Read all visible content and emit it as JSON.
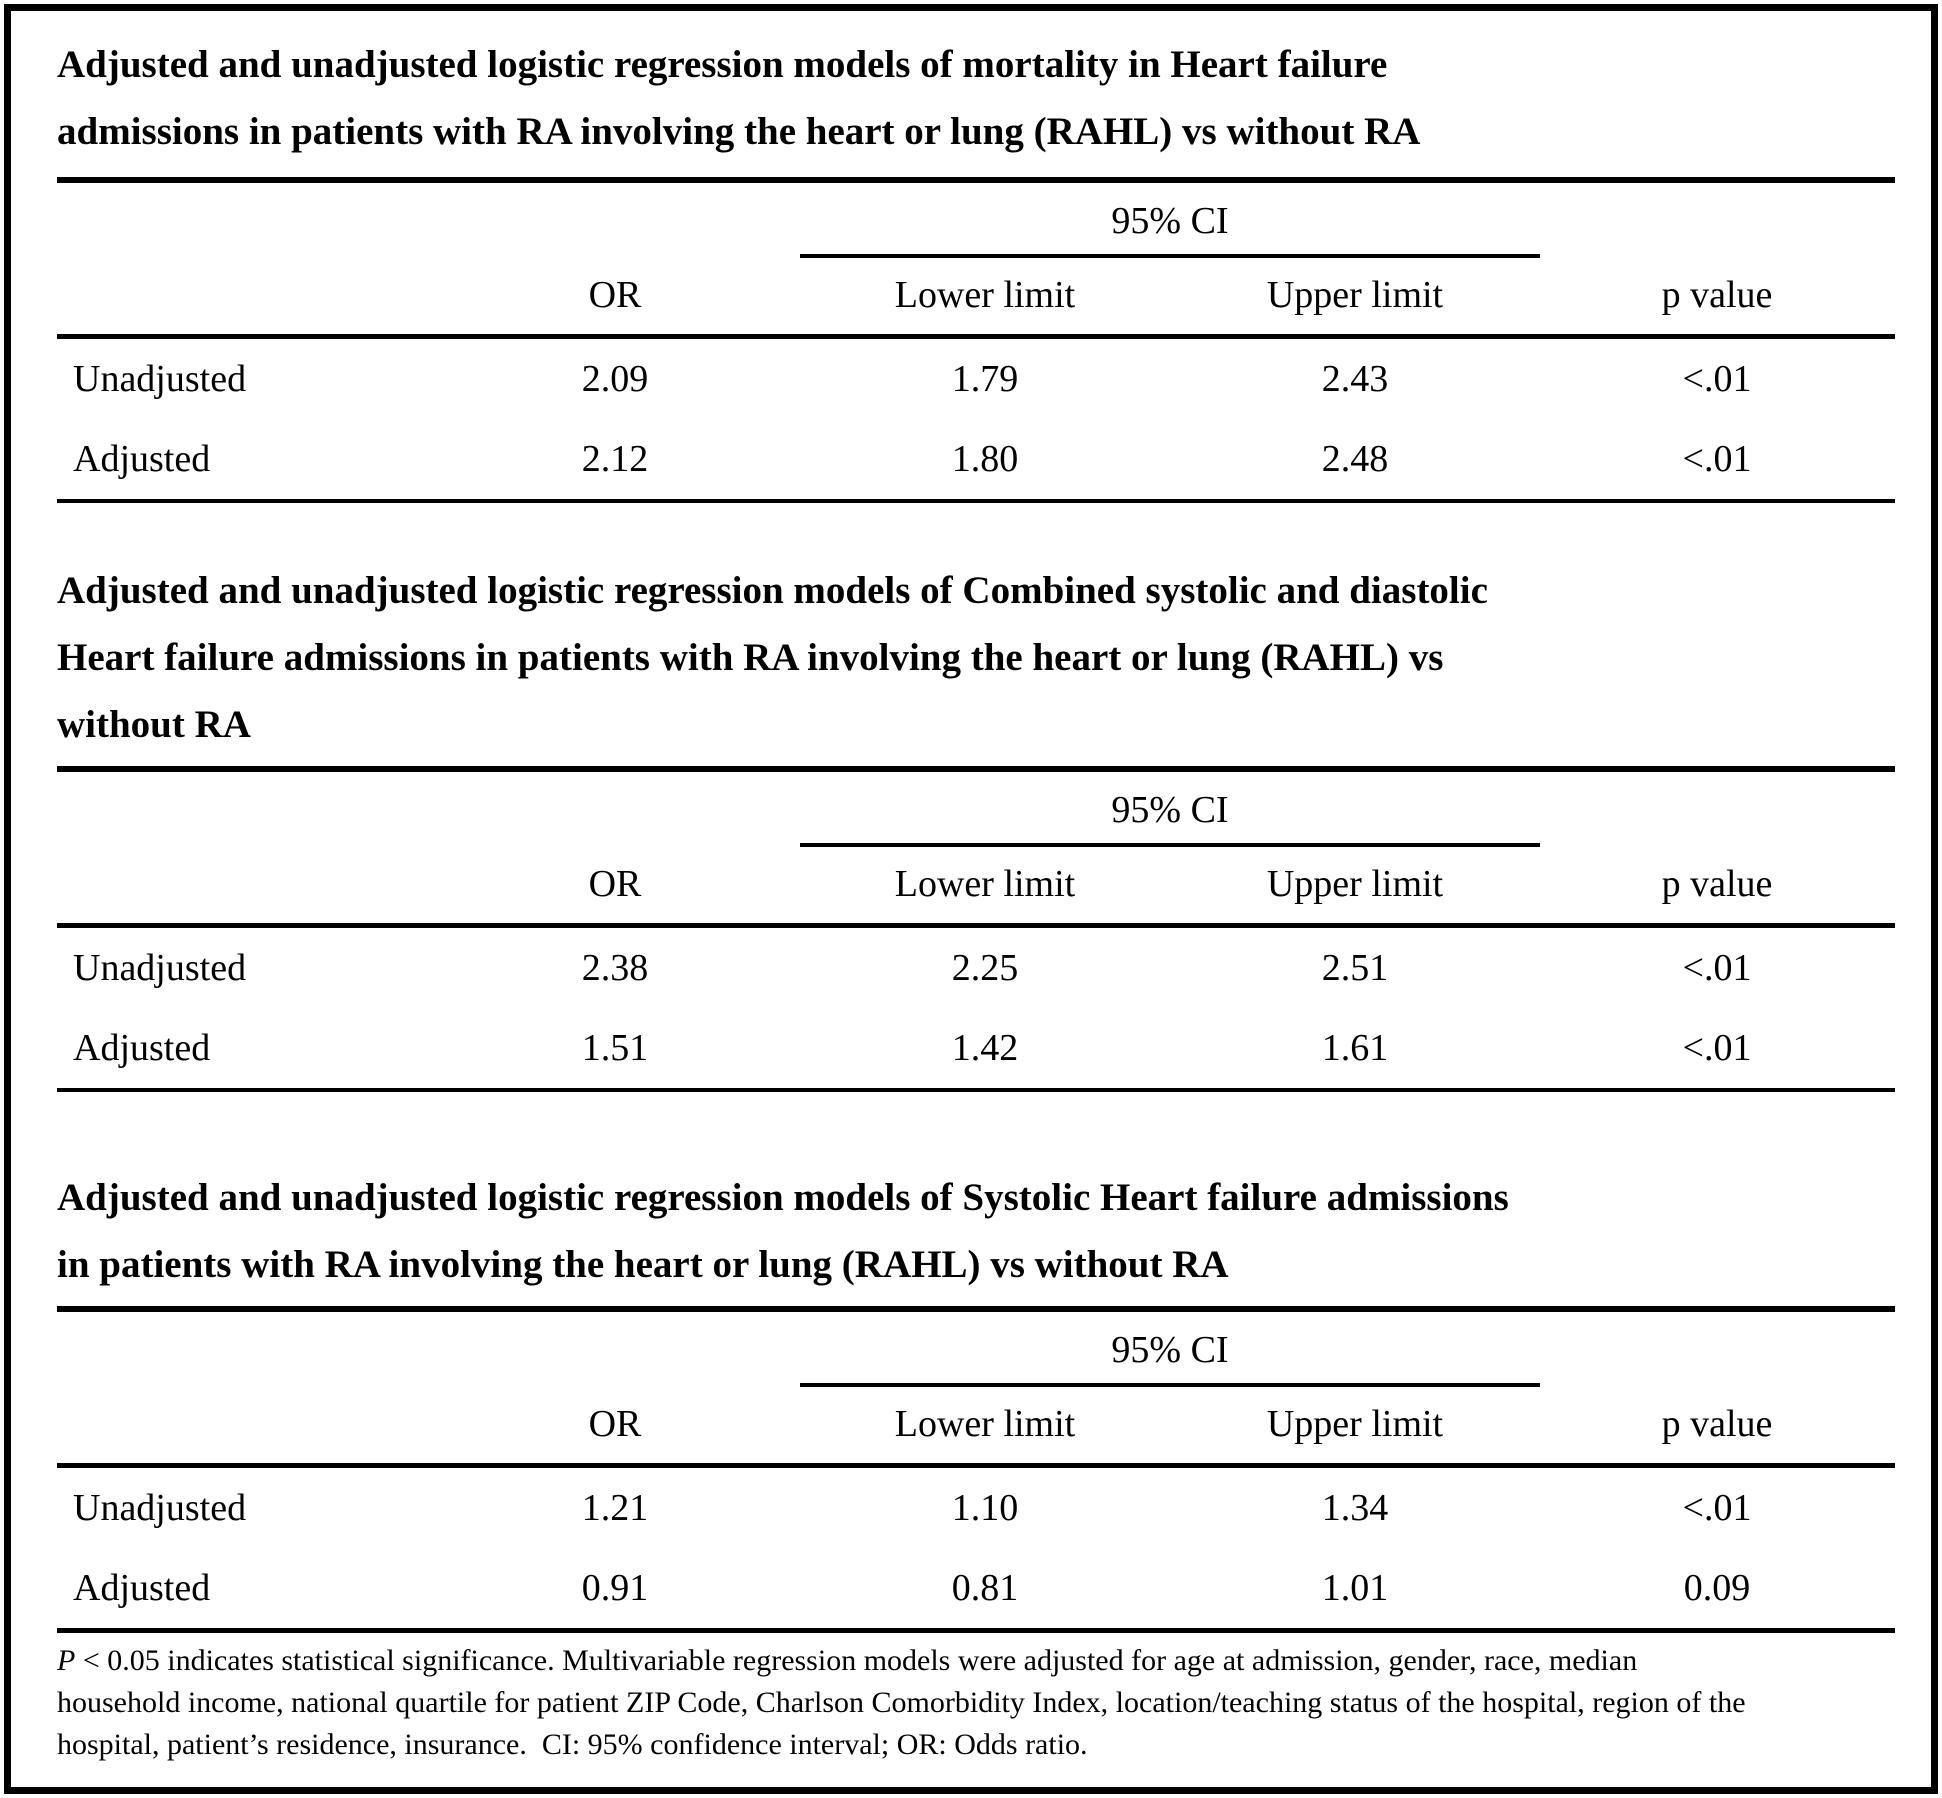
{
  "tables": [
    {
      "title_lines": [
        "Adjusted and unadjusted logistic regression models of mortality in Heart failure",
        "admissions in patients with RA involving the heart or lung (RAHL) vs without RA"
      ],
      "ci_group_header": "95% CI",
      "column_headers": {
        "or": "OR",
        "lower": "Lower limit",
        "upper": "Upper limit",
        "p": "p value"
      },
      "rows": [
        {
          "label": "Unadjusted",
          "or": "2.09",
          "lower": "1.79",
          "upper": "2.43",
          "p": "<.01"
        },
        {
          "label": "Adjusted",
          "or": "2.12",
          "lower": "1.80",
          "upper": "2.48",
          "p": "<.01"
        }
      ]
    },
    {
      "title_lines": [
        "Adjusted and unadjusted logistic regression models of Combined systolic and diastolic",
        "Heart failure admissions in patients with RA involving the heart or lung (RAHL) vs",
        "without RA"
      ],
      "ci_group_header": "95% CI",
      "column_headers": {
        "or": "OR",
        "lower": "Lower limit",
        "upper": "Upper limit",
        "p": "p value"
      },
      "rows": [
        {
          "label": "Unadjusted",
          "or": "2.38",
          "lower": "2.25",
          "upper": "2.51",
          "p": "<.01"
        },
        {
          "label": "Adjusted",
          "or": "1.51",
          "lower": "1.42",
          "upper": "1.61",
          "p": "<.01"
        }
      ]
    },
    {
      "title_lines": [
        "Adjusted and unadjusted logistic regression models of Systolic Heart failure admissions",
        "in patients with RA involving the heart or lung (RAHL) vs without RA"
      ],
      "ci_group_header": "95% CI",
      "column_headers": {
        "or": "OR",
        "lower": "Lower limit",
        "upper": "Upper limit",
        "p": "p value"
      },
      "rows": [
        {
          "label": "Unadjusted",
          "or": "1.21",
          "lower": "1.10",
          "upper": "1.34",
          "p": "<.01"
        },
        {
          "label": "Adjusted",
          "or": "0.91",
          "lower": "0.81",
          "upper": "1.01",
          "p": "0.09"
        }
      ]
    }
  ],
  "footnote": {
    "p_symbol": "P",
    "line1_rest": " < 0.05 indicates statistical significance. Multivariable regression models were adjusted for age at admission, gender, race, median",
    "line2": "household income, national quartile for patient ZIP Code, Charlson Comorbidity Index, location/teaching status of the hospital, region of the",
    "line3": "hospital, patient’s residence, insurance.  CI: 95% confidence interval; OR: Odds ratio."
  },
  "colors": {
    "text": "#000000",
    "background": "#ffffff",
    "border": "#000000"
  }
}
